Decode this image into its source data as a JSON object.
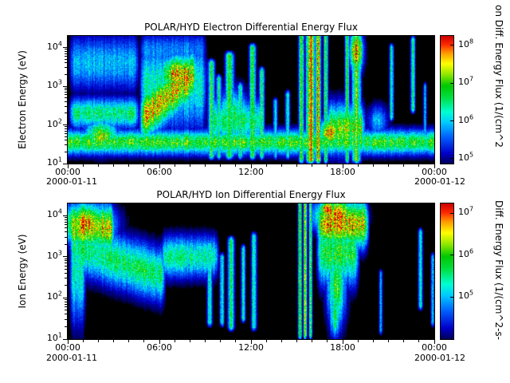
{
  "figure": {
    "background": "#ffffff",
    "colormap": [
      [
        0.0,
        "#000000"
      ],
      [
        0.07,
        "#000055"
      ],
      [
        0.15,
        "#0000cc"
      ],
      [
        0.27,
        "#0064ff"
      ],
      [
        0.37,
        "#00c8ff"
      ],
      [
        0.45,
        "#00ffd2"
      ],
      [
        0.55,
        "#00e046"
      ],
      [
        0.64,
        "#00c800"
      ],
      [
        0.72,
        "#8ce600"
      ],
      [
        0.8,
        "#ffff00"
      ],
      [
        0.88,
        "#ff9600"
      ],
      [
        0.94,
        "#ff2800"
      ],
      [
        1.0,
        "#cc0000"
      ]
    ]
  },
  "chart_data": [
    {
      "type": "heatmap",
      "title": "POLAR/HYD  Electron Differential Energy Flux",
      "ylabel": "Electron Energy (eV)",
      "y_log_range": [
        1.0,
        4.3
      ],
      "y_tick_exponents": [
        4,
        3,
        2,
        1
      ],
      "x_range_hours": [
        0,
        24
      ],
      "xticks": {
        "hours": [
          0,
          6,
          12,
          18,
          24
        ],
        "labels": [
          "00:00",
          "06:00",
          "12:00",
          "18:00",
          "00:00"
        ]
      },
      "x_date_start": "2000-01-11",
      "x_date_end": "2000-01-12",
      "colorbar": {
        "label_visible": "on Diff. Energy Flux (1/(cm^2",
        "tick_exponents": [
          8,
          7,
          6,
          5
        ],
        "log_range": [
          4.87,
          8.25
        ]
      },
      "seed": 11,
      "features": {
        "bands": [
          {
            "t0": -0.5,
            "t1": 24.5,
            "le": 1.55,
            "se": 0.22,
            "amp": 0.62
          },
          {
            "t0": 0,
            "t1": 4.8,
            "le": 3.6,
            "se": 0.5,
            "amp": 0.36
          },
          {
            "t0": 0,
            "t1": 4.8,
            "le": 2.3,
            "se": 0.28,
            "amp": 0.52
          },
          {
            "t0": 4.6,
            "t1": 8.6,
            "le": 2.1,
            "le_end": 3.4,
            "se": 0.45,
            "amp": 0.8
          },
          {
            "t0": 4.6,
            "t1": 9.2,
            "le": 3.0,
            "se": 0.8,
            "amp": 0.45
          },
          {
            "t0": 4.6,
            "t1": 9.2,
            "le": 3.9,
            "se": 0.35,
            "amp": 0.3
          },
          {
            "t0": 9.2,
            "t1": 13.0,
            "le": 2.1,
            "se": 0.4,
            "amp": 0.52
          },
          {
            "t0": 16.8,
            "t1": 19.6,
            "le": 1.9,
            "se": 0.45,
            "amp": 0.7
          }
        ],
        "blobs": [
          {
            "t": 7.3,
            "le": 3.3,
            "st": 1.0,
            "se": 0.35,
            "amp": 0.85
          },
          {
            "t": 2.2,
            "le": 1.7,
            "st": 0.8,
            "se": 0.3,
            "amp": 0.72
          },
          {
            "t": 10.8,
            "le": 2.2,
            "st": 0.8,
            "se": 0.5,
            "amp": 0.55
          },
          {
            "t": 17.2,
            "le": 1.8,
            "st": 0.5,
            "se": 0.25,
            "amp": 0.92
          },
          {
            "t": 18.9,
            "le": 3.9,
            "st": 0.3,
            "se": 0.4,
            "amp": 0.96
          },
          {
            "t": 20.3,
            "le": 2.1,
            "st": 0.5,
            "se": 0.3,
            "amp": 0.35
          }
        ],
        "stripes": [
          {
            "t": 9.4,
            "st": 0.15,
            "le0": 1.2,
            "le1": 3.6,
            "amp": 0.6
          },
          {
            "t": 9.9,
            "st": 0.12,
            "le0": 1.2,
            "le1": 3.2,
            "amp": 0.55
          },
          {
            "t": 10.6,
            "st": 0.18,
            "le0": 1.2,
            "le1": 3.8,
            "amp": 0.65
          },
          {
            "t": 11.3,
            "st": 0.12,
            "le0": 1.2,
            "le1": 3.0,
            "amp": 0.5
          },
          {
            "t": 12.1,
            "st": 0.15,
            "le0": 1.2,
            "le1": 4.0,
            "amp": 0.6
          },
          {
            "t": 12.7,
            "st": 0.12,
            "le0": 1.2,
            "le1": 3.4,
            "amp": 0.55
          },
          {
            "t": 13.6,
            "st": 0.1,
            "le0": 1.2,
            "le1": 2.6,
            "amp": 0.45
          },
          {
            "t": 14.4,
            "st": 0.1,
            "le0": 1.2,
            "le1": 2.8,
            "amp": 0.5
          },
          {
            "t": 15.3,
            "st": 0.12,
            "le0": 1.1,
            "le1": 4.3,
            "amp": 0.65
          },
          {
            "t": 15.9,
            "st": 0.18,
            "le0": 1.1,
            "le1": 4.3,
            "amp": 0.97
          },
          {
            "t": 16.4,
            "st": 0.12,
            "le0": 1.1,
            "le1": 4.3,
            "amp": 0.8
          },
          {
            "t": 16.9,
            "st": 0.1,
            "le0": 1.1,
            "le1": 4.3,
            "amp": 0.6
          },
          {
            "t": 18.3,
            "st": 0.1,
            "le0": 1.1,
            "le1": 4.3,
            "amp": 0.55
          },
          {
            "t": 18.9,
            "st": 0.2,
            "le0": 1.1,
            "le1": 4.3,
            "amp": 0.7
          },
          {
            "t": 21.2,
            "st": 0.1,
            "le0": 2.2,
            "le1": 4.0,
            "amp": 0.45
          },
          {
            "t": 22.6,
            "st": 0.1,
            "le0": 2.4,
            "le1": 4.2,
            "amp": 0.5
          },
          {
            "t": 23.4,
            "st": 0.08,
            "le0": 1.4,
            "le1": 3.0,
            "amp": 0.4
          }
        ]
      }
    },
    {
      "type": "heatmap",
      "title": "POLAR/HYD  Ion Differential Energy Flux",
      "ylabel": "Ion Energy (eV)",
      "y_log_range": [
        1.0,
        4.3
      ],
      "y_tick_exponents": [
        4,
        3,
        2,
        1
      ],
      "x_range_hours": [
        0,
        24
      ],
      "xticks": {
        "hours": [
          0,
          6,
          12,
          18,
          24
        ],
        "labels": [
          "00:00",
          "06:00",
          "12:00",
          "18:00",
          "00:00"
        ]
      },
      "x_date_start": "2000-01-11",
      "x_date_end": "2000-01-12",
      "colorbar": {
        "label_visible": "Diff. Energy Flux (1/(cm^2-s-",
        "tick_exponents": [
          7,
          6,
          5
        ],
        "log_range": [
          4.0,
          7.23
        ]
      },
      "seed": 22,
      "features": {
        "bands": [
          {
            "t0": 0,
            "t1": 3.2,
            "le": 3.7,
            "se": 0.4,
            "amp": 0.8
          },
          {
            "t0": 0,
            "t1": 6.5,
            "le": 3.3,
            "le_end": 2.5,
            "se": 0.45,
            "amp": 0.55
          },
          {
            "t0": 0,
            "t1": 1.3,
            "le": 2.7,
            "se": 0.9,
            "amp": 0.5
          },
          {
            "t0": 6.0,
            "t1": 10.0,
            "le": 3.0,
            "se": 0.35,
            "amp": 0.5
          },
          {
            "t0": 16.2,
            "t1": 19.8,
            "le": 3.8,
            "se": 0.4,
            "amp": 0.82
          },
          {
            "t0": 16.2,
            "t1": 19.2,
            "le": 3.1,
            "se": 0.55,
            "amp": 0.58
          }
        ],
        "blobs": [
          {
            "t": 1.2,
            "le": 3.8,
            "st": 1.2,
            "se": 0.35,
            "amp": 0.9
          },
          {
            "t": 17.6,
            "le": 4.0,
            "st": 1.0,
            "se": 0.3,
            "amp": 0.9
          },
          {
            "t": 17.0,
            "le": 4.15,
            "st": 0.4,
            "se": 0.15,
            "amp": 0.97
          },
          {
            "t": 17.6,
            "le": 2.3,
            "st": 0.45,
            "se": 0.7,
            "amp": 0.6
          },
          {
            "t": 17.5,
            "le": 1.6,
            "st": 0.25,
            "se": 0.4,
            "amp": 0.55
          }
        ],
        "stripes": [
          {
            "t": 9.3,
            "st": 0.12,
            "le0": 1.4,
            "le1": 3.3,
            "amp": 0.5
          },
          {
            "t": 10.1,
            "st": 0.1,
            "le0": 1.4,
            "le1": 3.0,
            "amp": 0.45
          },
          {
            "t": 10.7,
            "st": 0.15,
            "le0": 1.3,
            "le1": 3.4,
            "amp": 0.5
          },
          {
            "t": 11.5,
            "st": 0.1,
            "le0": 1.5,
            "le1": 3.2,
            "amp": 0.45
          },
          {
            "t": 12.2,
            "st": 0.12,
            "le0": 1.3,
            "le1": 3.5,
            "amp": 0.5
          },
          {
            "t": 15.2,
            "st": 0.08,
            "le0": 1.1,
            "le1": 4.3,
            "amp": 0.7
          },
          {
            "t": 15.55,
            "st": 0.07,
            "le0": 1.1,
            "le1": 4.3,
            "amp": 0.85
          },
          {
            "t": 15.9,
            "st": 0.07,
            "le0": 1.1,
            "le1": 4.3,
            "amp": 0.6
          },
          {
            "t": 17.5,
            "st": 0.2,
            "le0": 1.3,
            "le1": 3.2,
            "amp": 0.5
          },
          {
            "t": 20.5,
            "st": 0.08,
            "le0": 1.2,
            "le1": 2.6,
            "amp": 0.35
          },
          {
            "t": 23.1,
            "st": 0.1,
            "le0": 1.8,
            "le1": 3.6,
            "amp": 0.5
          },
          {
            "t": 23.9,
            "st": 0.08,
            "le0": 1.4,
            "le1": 3.0,
            "amp": 0.4
          }
        ]
      }
    }
  ]
}
